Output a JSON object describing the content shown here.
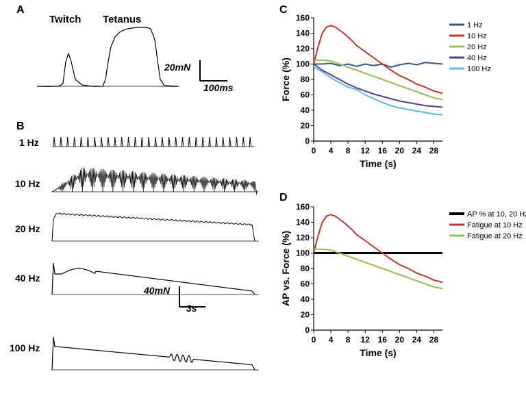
{
  "panelA": {
    "label": "A",
    "labels": {
      "twitch": "Twitch",
      "tetanus": "Tetanus"
    },
    "scale": {
      "vertical": "20mN",
      "horizontal": "100ms"
    },
    "trace_color": "#000000",
    "line_width": 1.2
  },
  "panelB": {
    "label": "B",
    "labels": {
      "hz1": "1 Hz",
      "hz10": "10 Hz",
      "hz20": "20 Hz",
      "hz40": "40 Hz",
      "hz100": "100 Hz"
    },
    "scale": {
      "vertical": "40mN",
      "horizontal": "3s"
    },
    "trace_color": "#000000",
    "line_width": 1.0
  },
  "panelC": {
    "label": "C",
    "type": "line",
    "xlabel": "Time (s)",
    "ylabel": "Force (%)",
    "xlim": [
      0,
      30
    ],
    "x_ticks": [
      0,
      4,
      8,
      12,
      16,
      20,
      24,
      28
    ],
    "ylim": [
      0,
      160
    ],
    "y_ticks": [
      0,
      20,
      40,
      60,
      80,
      100,
      120,
      140,
      160
    ],
    "label_fontsize": 14,
    "tick_fontsize": 12,
    "line_width": 2,
    "background_color": "#ffffff",
    "grid": false,
    "series": [
      {
        "name": "1 Hz",
        "color": "#30588e",
        "x": [
          0,
          2,
          4,
          6,
          8,
          10,
          12,
          14,
          16,
          18,
          20,
          22,
          24,
          26,
          28,
          30
        ],
        "y": [
          100,
          100,
          101,
          98,
          100,
          97,
          100,
          98,
          100,
          96,
          99,
          101,
          99,
          102,
          101,
          100
        ]
      },
      {
        "name": "10 Hz",
        "color": "#c0342b",
        "x": [
          0,
          1,
          2,
          3,
          4,
          5,
          6,
          7,
          8,
          9,
          10,
          12,
          14,
          16,
          18,
          20,
          22,
          24,
          26,
          28,
          30
        ],
        "y": [
          100,
          122,
          140,
          148,
          150,
          148,
          144,
          140,
          135,
          130,
          124,
          116,
          108,
          100,
          92,
          85,
          80,
          74,
          70,
          65,
          62
        ]
      },
      {
        "name": "20 Hz",
        "color": "#9bbb59",
        "x": [
          0,
          2,
          4,
          6,
          8,
          10,
          12,
          14,
          16,
          18,
          20,
          22,
          24,
          26,
          28,
          30
        ],
        "y": [
          105,
          105,
          104,
          100,
          96,
          92,
          88,
          84,
          80,
          76,
          72,
          68,
          64,
          60,
          56,
          54
        ]
      },
      {
        "name": "40 Hz",
        "color": "#5a3b8e",
        "x": [
          0,
          2,
          4,
          6,
          8,
          10,
          12,
          14,
          16,
          18,
          20,
          22,
          24,
          26,
          28,
          30
        ],
        "y": [
          100,
          92,
          86,
          80,
          74,
          69,
          65,
          61,
          58,
          55,
          52,
          50,
          48,
          46,
          45,
          44
        ]
      },
      {
        "name": "100 Hz",
        "color": "#5bb5e8",
        "x": [
          0,
          2,
          4,
          6,
          8,
          10,
          12,
          14,
          16,
          18,
          20,
          22,
          24,
          26,
          28,
          30
        ],
        "y": [
          96,
          90,
          82,
          76,
          70,
          67,
          60,
          55,
          50,
          46,
          43,
          41,
          39,
          37,
          35,
          34
        ]
      }
    ]
  },
  "panelD": {
    "label": "D",
    "type": "line",
    "xlabel": "Time (s)",
    "ylabel": "AP vs. Force (%)",
    "xlim": [
      0,
      30
    ],
    "x_ticks": [
      0,
      4,
      8,
      12,
      16,
      20,
      24,
      28
    ],
    "ylim": [
      0,
      160
    ],
    "y_ticks": [
      0,
      20,
      40,
      60,
      80,
      100,
      120,
      140,
      160
    ],
    "label_fontsize": 14,
    "tick_fontsize": 12,
    "line_width": 2,
    "background_color": "#ffffff",
    "grid": false,
    "series": [
      {
        "name": "AP % at 10, 20 Hz",
        "color": "#000000",
        "x": [
          0,
          30
        ],
        "y": [
          100,
          100
        ],
        "width": 3
      },
      {
        "name": "Fatigue at 10 Hz",
        "color": "#c0342b",
        "x": [
          0,
          1,
          2,
          3,
          4,
          5,
          6,
          7,
          8,
          9,
          10,
          12,
          14,
          16,
          18,
          20,
          22,
          24,
          26,
          28,
          30
        ],
        "y": [
          100,
          122,
          140,
          148,
          150,
          148,
          144,
          140,
          135,
          130,
          124,
          116,
          108,
          100,
          92,
          85,
          80,
          74,
          70,
          65,
          62
        ]
      },
      {
        "name": "Fatigue at 20 Hz",
        "color": "#9bbb59",
        "x": [
          0,
          2,
          4,
          6,
          8,
          10,
          12,
          14,
          16,
          18,
          20,
          22,
          24,
          26,
          28,
          30
        ],
        "y": [
          105,
          105,
          104,
          100,
          96,
          92,
          88,
          84,
          80,
          76,
          72,
          68,
          64,
          60,
          56,
          54
        ]
      }
    ]
  }
}
